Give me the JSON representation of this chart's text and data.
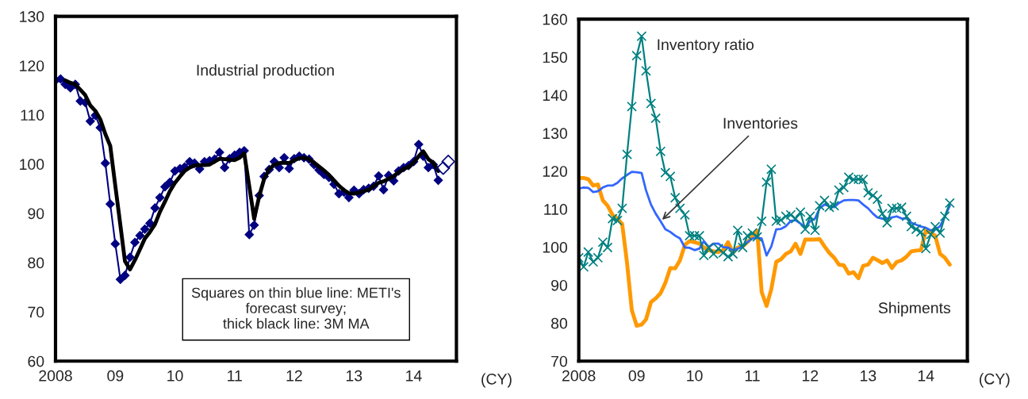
{
  "chart_data": [
    {
      "type": "line",
      "xlabel": "(CY)",
      "x": [
        "2008-01",
        "2008-02",
        "2008-03",
        "2008-04",
        "2008-05",
        "2008-06",
        "2008-07",
        "2008-08",
        "2008-09",
        "2008-10",
        "2008-11",
        "2008-12",
        "2009-01",
        "2009-02",
        "2009-03",
        "2009-04",
        "2009-05",
        "2009-06",
        "2009-07",
        "2009-08",
        "2009-09",
        "2009-10",
        "2009-11",
        "2009-12",
        "2010-01",
        "2010-02",
        "2010-03",
        "2010-04",
        "2010-05",
        "2010-06",
        "2010-07",
        "2010-08",
        "2010-09",
        "2010-10",
        "2010-11",
        "2010-12",
        "2011-01",
        "2011-02",
        "2011-03",
        "2011-04",
        "2011-05",
        "2011-06",
        "2011-07",
        "2011-08",
        "2011-09",
        "2011-10",
        "2011-11",
        "2011-12",
        "2012-01",
        "2012-02",
        "2012-03",
        "2012-04",
        "2012-05",
        "2012-06",
        "2012-07",
        "2012-08",
        "2012-09",
        "2012-10",
        "2012-11",
        "2012-12",
        "2013-01",
        "2013-02",
        "2013-03",
        "2013-04",
        "2013-05",
        "2013-06",
        "2013-07",
        "2013-08",
        "2013-09",
        "2013-10",
        "2013-11",
        "2013-12",
        "2014-01",
        "2014-02",
        "2014-03",
        "2014-04",
        "2014-05",
        "2014-06"
      ],
      "series": [
        {
          "color": "#000080",
          "marker": "diamond",
          "values": [
            117.0,
            117.3,
            116.2,
            115.5,
            116.2,
            112.8,
            112.5,
            108.7,
            109.9,
            107.4,
            100.2,
            91.9,
            83.8,
            76.6,
            77.4,
            81.1,
            84.1,
            85.5,
            86.8,
            88.0,
            91.1,
            93.2,
            95.4,
            96.3,
            98.6,
            99.1,
            99.4,
            100.5,
            100.2,
            99.0,
            100.5,
            100.7,
            101.0,
            102.4,
            99.3,
            101.1,
            101.8,
            102.4,
            102.7,
            85.7,
            87.6,
            93.6,
            97.5,
            98.9,
            100.5,
            99.3,
            101.3,
            99.1,
            101.1,
            101.6,
            101.3,
            101.0,
            99.9,
            98.8,
            97.9,
            97.3,
            95.9,
            94.0,
            94.3,
            93.2,
            94.7,
            94.0,
            94.8,
            95.1,
            95.5,
            97.6,
            94.8,
            97.7,
            96.6,
            98.6,
            99.3,
            99.7,
            100.5,
            104.0,
            101.6,
            99.3,
            99.9,
            96.7
          ]
        },
        {
          "color": "#000000",
          "marker": "none",
          "values": [
            null,
            null,
            117.0,
            116.5,
            116.2,
            115.1,
            114.0,
            111.9,
            110.8,
            109.1,
            106.1,
            103.7,
            95.6,
            87.6,
            80.3,
            78.6,
            80.5,
            82.7,
            84.9,
            86.2,
            87.8,
            90.3,
            92.4,
            94.5,
            96.2,
            97.5,
            98.6,
            99.3,
            99.7,
            99.8,
            99.8,
            99.9,
            100.5,
            101.1,
            101.0,
            100.9,
            100.8,
            101.3,
            102.2,
            95.5,
            88.9,
            93.5,
            97.0,
            99.0,
            99.8,
            100.2,
            100.3,
            100.2,
            100.8,
            101.2,
            101.3,
            101.0,
            100.3,
            99.5,
            98.7,
            97.8,
            96.7,
            95.6,
            94.7,
            94.1,
            94.0,
            94.2,
            94.5,
            94.8,
            95.5,
            96.2,
            96.5,
            97.0,
            97.6,
            98.3,
            99.0,
            99.4,
            100.3,
            101.6,
            102.6,
            101.0,
            100.3,
            98.6
          ]
        },
        {
          "type": "scatter",
          "color": "#000080",
          "marker": "diamond",
          "x": [
            "2014-07",
            "2014-08"
          ],
          "values": [
            99.2,
            100.5
          ]
        }
      ],
      "xlim": [
        "2008-01",
        "2014-09-20"
      ],
      "xticks": [
        {
          "value": "2008-01",
          "label": "2008"
        },
        {
          "value": "2009-01",
          "label": "09"
        },
        {
          "value": "2010-01",
          "label": "10"
        },
        {
          "value": "2011-01",
          "label": "11"
        },
        {
          "value": "2012-01",
          "label": "12"
        },
        {
          "value": "2013-01",
          "label": "13"
        },
        {
          "value": "2014-01",
          "label": "14"
        }
      ],
      "ylim": [
        60,
        130
      ],
      "yticks": [
        60,
        70,
        80,
        90,
        100,
        110,
        120,
        130
      ],
      "grid": false,
      "legend": false,
      "annotations": [
        "Industrial production",
        "Squares on thin blue line: METI's\nforecast survey;\nthick black line: 3M MA"
      ]
    },
    {
      "type": "line",
      "xlabel": "(CY)",
      "x": [
        "2008-01",
        "2008-02",
        "2008-03",
        "2008-04",
        "2008-05",
        "2008-06",
        "2008-07",
        "2008-08",
        "2008-09",
        "2008-10",
        "2008-11",
        "2008-12",
        "2009-01",
        "2009-02",
        "2009-03",
        "2009-04",
        "2009-05",
        "2009-06",
        "2009-07",
        "2009-08",
        "2009-09",
        "2009-10",
        "2009-11",
        "2009-12",
        "2010-01",
        "2010-02",
        "2010-03",
        "2010-04",
        "2010-05",
        "2010-06",
        "2010-07",
        "2010-08",
        "2010-09",
        "2010-10",
        "2010-11",
        "2010-12",
        "2011-01",
        "2011-02",
        "2011-03",
        "2011-04",
        "2011-05",
        "2011-06",
        "2011-07",
        "2011-08",
        "2011-09",
        "2011-10",
        "2011-11",
        "2011-12",
        "2012-01",
        "2012-02",
        "2012-03",
        "2012-04",
        "2012-05",
        "2012-06",
        "2012-07",
        "2012-08",
        "2012-09",
        "2012-10",
        "2012-11",
        "2012-12",
        "2013-01",
        "2013-02",
        "2013-03",
        "2013-04",
        "2013-05",
        "2013-06",
        "2013-07",
        "2013-08",
        "2013-09",
        "2013-10",
        "2013-11",
        "2013-12",
        "2014-01",
        "2014-02",
        "2014-03",
        "2014-04",
        "2014-05",
        "2014-06"
      ],
      "series": [
        {
          "name": "Shipments",
          "color": "#ff9900",
          "marker": "none",
          "values": [
            118.2,
            118.2,
            117.9,
            116.2,
            116.5,
            112.3,
            110.9,
            108.5,
            107.5,
            106.1,
            95.8,
            83.4,
            79.3,
            79.6,
            81.0,
            85.5,
            86.5,
            87.9,
            90.6,
            94.5,
            94.4,
            96.5,
            100.6,
            101.6,
            101.3,
            100.9,
            99.9,
            99.2,
            98.9,
            98.7,
            99.2,
            101.3,
            98.5,
            99.9,
            100.2,
            101.3,
            102.7,
            104.4,
            88.2,
            84.5,
            88.9,
            96.1,
            96.8,
            98.2,
            98.9,
            100.9,
            98.2,
            102.0,
            102.0,
            102.0,
            102.1,
            100.2,
            98.5,
            97.2,
            95.4,
            95.2,
            93.0,
            93.4,
            91.8,
            95.1,
            95.4,
            97.2,
            96.6,
            95.8,
            96.5,
            94.5,
            96.1,
            96.5,
            97.5,
            98.9,
            99.1,
            99.2,
            104.4,
            103.7,
            103.0,
            98.2,
            97.2,
            95.4
          ]
        },
        {
          "name": "Inventories",
          "color": "#3366ff",
          "marker": "none",
          "values": [
            115.4,
            115.7,
            115.6,
            114.5,
            114.7,
            115.7,
            116.2,
            116.2,
            116.9,
            118.1,
            119.0,
            119.8,
            119.7,
            119.5,
            114.9,
            111.2,
            108.8,
            106.8,
            104.7,
            104.0,
            103.0,
            102.3,
            99.9,
            99.8,
            99.2,
            99.6,
            101.6,
            100.0,
            100.9,
            100.9,
            100.0,
            99.9,
            99.1,
            99.6,
            100.2,
            101.3,
            102.3,
            102.5,
            102.3,
            97.8,
            100.2,
            104.7,
            104.8,
            105.5,
            106.9,
            107.1,
            106.2,
            105.1,
            106.8,
            107.5,
            110.2,
            111.2,
            110.8,
            110.5,
            111.6,
            112.3,
            112.4,
            112.4,
            112.3,
            111.2,
            110.2,
            108.8,
            107.8,
            107.5,
            107.5,
            107.8,
            108.1,
            107.5,
            107.6,
            106.4,
            105.9,
            105.4,
            105.1,
            104.4,
            104.6,
            105.5,
            108.1,
            110.9
          ]
        },
        {
          "name": "Inventory ratio",
          "color": "#008080",
          "marker": "cross",
          "values": [
            97.2,
            94.8,
            98.7,
            96.1,
            97.2,
            101.3,
            99.9,
            107.5,
            107.0,
            110.2,
            124.4,
            137.0,
            150.4,
            155.5,
            146.4,
            137.8,
            133.9,
            125.2,
            119.6,
            118.6,
            113.0,
            110.2,
            108.5,
            103.0,
            103.0,
            103.0,
            97.8,
            99.9,
            98.2,
            99.6,
            98.5,
            97.5,
            98.2,
            104.4,
            99.9,
            103.0,
            103.7,
            102.7,
            106.8,
            117.1,
            120.5,
            106.8,
            107.1,
            108.1,
            108.5,
            107.5,
            109.2,
            104.7,
            108.1,
            104.4,
            110.9,
            112.3,
            110.5,
            110.9,
            115.0,
            115.7,
            118.4,
            117.8,
            117.9,
            117.8,
            114.3,
            113.6,
            112.6,
            108.8,
            106.4,
            110.2,
            110.2,
            110.5,
            108.1,
            105.4,
            104.7,
            104.0,
            99.6,
            103.3,
            105.4,
            103.7,
            108.1,
            111.6
          ]
        }
      ],
      "xlim": [
        "2008-01",
        "2014-09-20"
      ],
      "xticks": [
        {
          "value": "2008-01",
          "label": "2008"
        },
        {
          "value": "2009-01",
          "label": "09"
        },
        {
          "value": "2010-01",
          "label": "10"
        },
        {
          "value": "2011-01",
          "label": "11"
        },
        {
          "value": "2012-01",
          "label": "12"
        },
        {
          "value": "2013-01",
          "label": "13"
        },
        {
          "value": "2014-01",
          "label": "14"
        }
      ],
      "ylim": [
        70,
        160
      ],
      "yticks": [
        70,
        80,
        90,
        100,
        110,
        120,
        130,
        140,
        150,
        160
      ],
      "grid": false,
      "legend": false
    }
  ]
}
